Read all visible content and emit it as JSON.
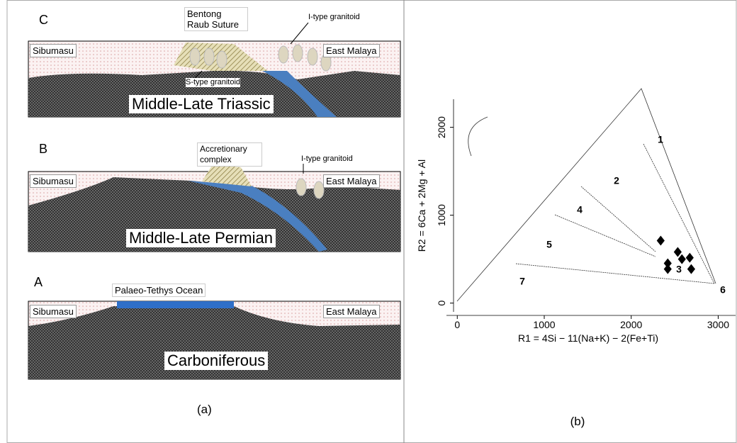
{
  "panel_a": {
    "caption": "(a)",
    "sections": [
      {
        "letter": "C",
        "period": "Middle-Late Triassic",
        "west": "Sibumasu",
        "east": "East Malaya",
        "notes": [
          "Bentong Raub Suture",
          "I-type granitoid",
          "S-type granitoid"
        ]
      },
      {
        "letter": "B",
        "period": "Middle-Late Permian",
        "west": "Sibumasu",
        "east": "East Malaya",
        "notes": [
          "Accretionary complex",
          "I-type granitoid"
        ]
      },
      {
        "letter": "A",
        "period": "Carboniferous",
        "west": "Sibumasu",
        "east": "East Malaya",
        "notes": [
          "Palaeo-Tethys Ocean"
        ]
      }
    ]
  },
  "chart_data": {
    "type": "scatter",
    "caption": "(b)",
    "x_label": "R1 = 4Si − 11(Na+K) − 2(Fe+Ti)",
    "y_label": "R2 = 6Ca + 2Mg + Al",
    "x": [
      2339,
      2535,
      2583,
      2673,
      2420,
      2420,
      2690
    ],
    "y": [
      710,
      581,
      500,
      516,
      452,
      387,
      387
    ],
    "color": "#000000",
    "marker": "diamond",
    "xlim": [
      -100,
      3200
    ],
    "ylim": [
      -100,
      2400
    ],
    "xticks": [
      0,
      1000,
      2000,
      3000
    ],
    "yticks": [
      0,
      1000,
      2000
    ],
    "region_labels": [
      "1",
      "2",
      "3",
      "4",
      "5",
      "6",
      "7"
    ]
  }
}
